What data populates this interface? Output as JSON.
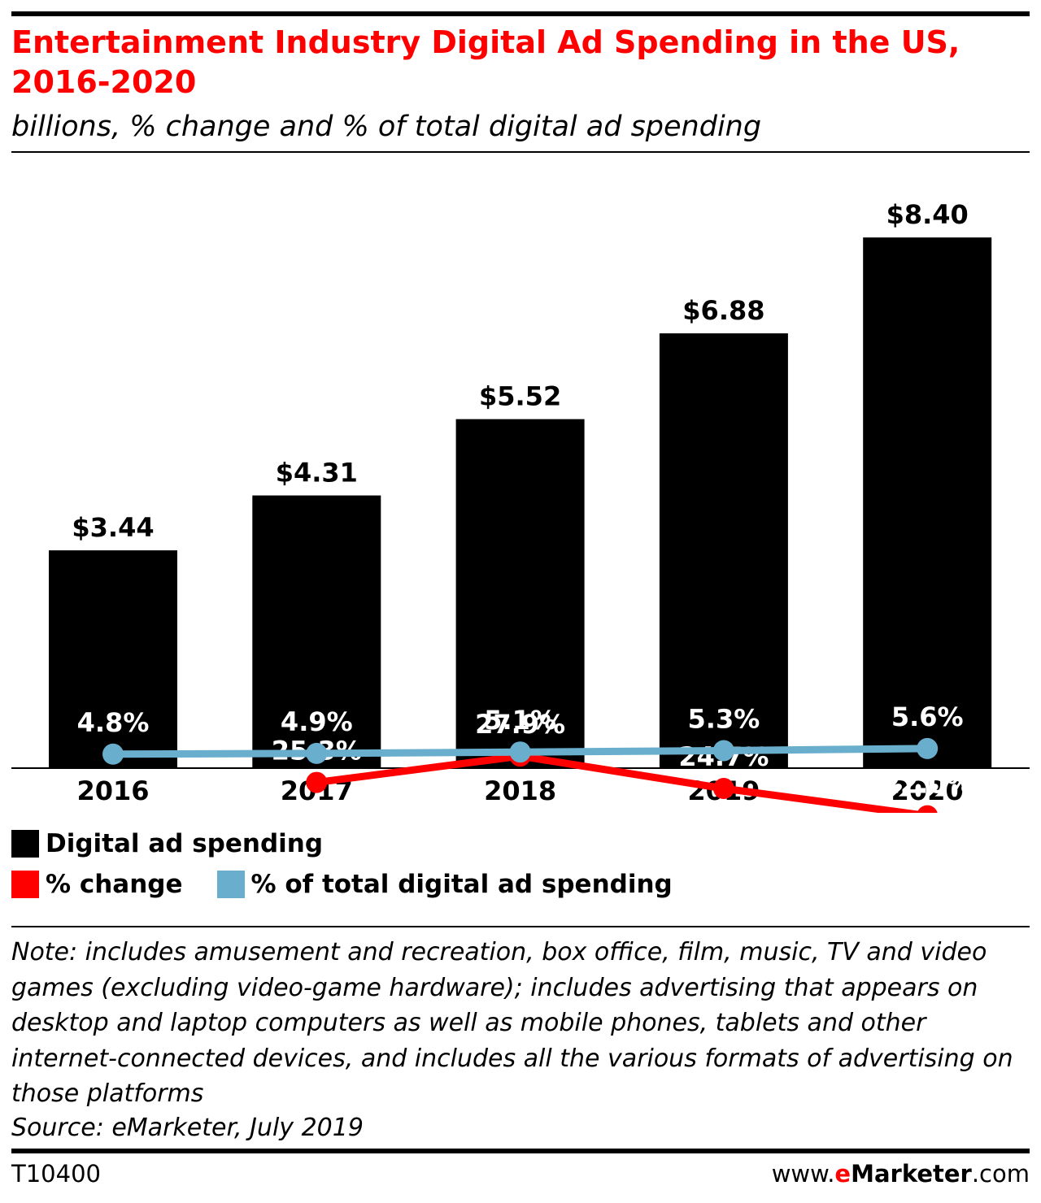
{
  "header": {
    "title": "Entertainment Industry Digital Ad Spending in the US, 2016-2020",
    "subtitle": "billions, % change and % of total digital ad spending"
  },
  "colors": {
    "title": "#ff0000",
    "bars": "#000000",
    "pct_change": "#ff0000",
    "pct_total": "#6aaecd"
  },
  "chart_data": {
    "type": "bar",
    "categories": [
      "2016",
      "2017",
      "2018",
      "2019",
      "2020"
    ],
    "series": [
      {
        "name": "Digital ad spending",
        "type": "bar",
        "values": [
          3.44,
          4.31,
          5.52,
          6.88,
          8.4
        ],
        "labels": [
          "$3.44",
          "$4.31",
          "$5.52",
          "$6.88",
          "$8.40"
        ]
      },
      {
        "name": "% change",
        "type": "line",
        "values": [
          null,
          25.3,
          27.9,
          24.7,
          22.0
        ],
        "labels": [
          "",
          "25.3%",
          "27.9%",
          "24.7%",
          "22.0%"
        ]
      },
      {
        "name": "% of total digital ad spending",
        "type": "line",
        "values": [
          4.8,
          4.9,
          5.1,
          5.3,
          5.6
        ],
        "labels": [
          "4.8%",
          "4.9%",
          "5.1%",
          "5.3%",
          "5.6%"
        ]
      }
    ],
    "legend": {
      "position": "bottom"
    },
    "grid": false
  },
  "footer": {
    "note": "Note: includes amusement and recreation, box office, film, music, TV and video games (excluding video-game hardware); includes advertising that appears on desktop and laptop computers as well as mobile phones, tablets and other internet-connected devices, and includes all the various formats of advertising on those platforms",
    "source": "Source: eMarketer, July 2019",
    "chart_id": "T10400",
    "brand_prefix": "www.",
    "brand_e": "e",
    "brand_name": "Marketer",
    "brand_suffix": ".com"
  }
}
